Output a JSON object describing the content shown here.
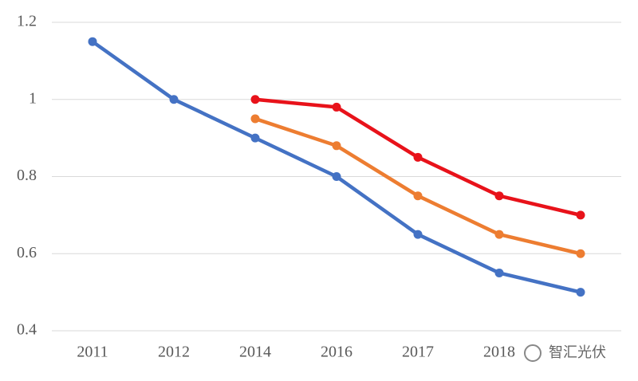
{
  "chart_data": {
    "type": "line",
    "categories": [
      "2011",
      "2012",
      "2014",
      "2016",
      "2017",
      "2018",
      null
    ],
    "series": [
      {
        "color": "#4472c4",
        "values": [
          1.15,
          1.0,
          0.9,
          0.8,
          0.65,
          0.55,
          0.5
        ]
      },
      {
        "color": "#ed7d31",
        "values": [
          null,
          null,
          0.95,
          0.88,
          0.75,
          0.65,
          0.6
        ]
      },
      {
        "color": "#e8121a",
        "values": [
          null,
          null,
          1.0,
          0.98,
          0.85,
          0.75,
          0.7
        ]
      }
    ],
    "ylim": [
      0.4,
      1.2
    ],
    "yticks": [
      0.4,
      0.6,
      0.8,
      1,
      1.2
    ],
    "grid": true,
    "annotation": "智汇光伏"
  }
}
